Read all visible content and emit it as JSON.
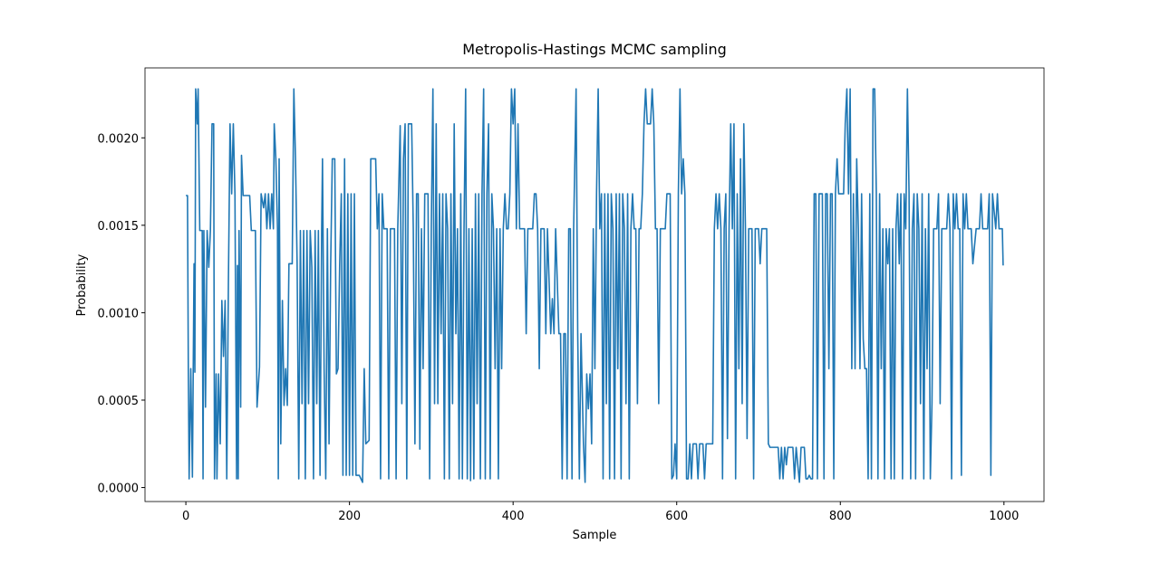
{
  "chart_data": {
    "type": "line",
    "title": "Metropolis-Hastings MCMC sampling",
    "x_label": "Sample",
    "y_label": "Probability",
    "color": "#1f77b4",
    "xlim": [
      -49.95,
      1048.95
    ],
    "ylim": [
      -8e-05,
      0.0024
    ],
    "xticks": [
      0,
      200,
      400,
      600,
      800,
      1000
    ],
    "yticks": [
      {
        "value": 0,
        "label": "0.0000"
      },
      0.0005,
      {
        "value": 0.001,
        "label": "0.0010"
      },
      0.0015,
      {
        "value": 0.002,
        "label": "0.0020"
      }
    ],
    "x": [
      0,
      2,
      3,
      4,
      6,
      8,
      10,
      11,
      12,
      14,
      15,
      17,
      20,
      21,
      22,
      24,
      26,
      28,
      30,
      32,
      34,
      35,
      37,
      38,
      40,
      42,
      44,
      46,
      48,
      50,
      52,
      54,
      56,
      58,
      60,
      62,
      63,
      64,
      65,
      67,
      68,
      70,
      78,
      80,
      85,
      87,
      90,
      92,
      95,
      97,
      99,
      101,
      103,
      105,
      107,
      108,
      110,
      112,
      113,
      114,
      116,
      118,
      120,
      122,
      124,
      126,
      130,
      132,
      134,
      136,
      138,
      140,
      142,
      144,
      146,
      148,
      150,
      152,
      154,
      156,
      158,
      160,
      162,
      164,
      166,
      167,
      169,
      171,
      173,
      175,
      177,
      179,
      182,
      184,
      186,
      188,
      190,
      192,
      194,
      196,
      198,
      200,
      202,
      204,
      206,
      208,
      212,
      216,
      218,
      220,
      224,
      226,
      232,
      234,
      236,
      238,
      240,
      242,
      246,
      248,
      250,
      255,
      257,
      259,
      262,
      264,
      266,
      268,
      270,
      272,
      276,
      278,
      280,
      282,
      284,
      286,
      288,
      290,
      292,
      296,
      298,
      300,
      302,
      304,
      306,
      308,
      310,
      312,
      314,
      316,
      318,
      320,
      322,
      324,
      326,
      328,
      330,
      332,
      334,
      336,
      338,
      340,
      342,
      344,
      346,
      348,
      350,
      352,
      354,
      356,
      358,
      360,
      362,
      364,
      366,
      368,
      370,
      372,
      374,
      376,
      378,
      380,
      382,
      384,
      386,
      388,
      390,
      392,
      394,
      396,
      398,
      400,
      402,
      404,
      406,
      408,
      410,
      414,
      416,
      418,
      424,
      426,
      428,
      430,
      432,
      434,
      438,
      440,
      442,
      446,
      448,
      450,
      452,
      456,
      458,
      460,
      462,
      464,
      466,
      468,
      470,
      472,
      474,
      477,
      479,
      481,
      483,
      486,
      488,
      490,
      492,
      494,
      496,
      498,
      500,
      502,
      504,
      506,
      508,
      510,
      512,
      514,
      516,
      518,
      520,
      522,
      524,
      526,
      528,
      530,
      532,
      534,
      536,
      538,
      540,
      542,
      544,
      546,
      548,
      550,
      552,
      554,
      556,
      558,
      560,
      562,
      564,
      568,
      570,
      572,
      574,
      576,
      578,
      580,
      586,
      588,
      592,
      594,
      596,
      598,
      600,
      602,
      604,
      606,
      608,
      610,
      612,
      614,
      616,
      618,
      620,
      624,
      626,
      628,
      632,
      634,
      636,
      644,
      646,
      648,
      650,
      652,
      654,
      656,
      658,
      660,
      662,
      664,
      666,
      668,
      670,
      672,
      674,
      676,
      678,
      680,
      682,
      684,
      686,
      688,
      692,
      694,
      696,
      700,
      702,
      704,
      710,
      712,
      714,
      724,
      726,
      728,
      730,
      732,
      734,
      736,
      742,
      744,
      746,
      750,
      752,
      756,
      758,
      760,
      762,
      764,
      766,
      768,
      770,
      772,
      774,
      778,
      780,
      782,
      784,
      786,
      788,
      790,
      792,
      794,
      796,
      798,
      800,
      804,
      806,
      808,
      810,
      812,
      814,
      816,
      818,
      820,
      822,
      824,
      826,
      828,
      830,
      832,
      834,
      836,
      838,
      840,
      842,
      844,
      846,
      848,
      850,
      852,
      854,
      856,
      858,
      860,
      862,
      864,
      866,
      868,
      870,
      872,
      874,
      876,
      878,
      880,
      882,
      884,
      886,
      888,
      890,
      892,
      894,
      896,
      898,
      900,
      902,
      904,
      906,
      908,
      910,
      912,
      914,
      918,
      920,
      922,
      924,
      930,
      932,
      934,
      936,
      938,
      940,
      942,
      944,
      946,
      948,
      950,
      952,
      954,
      956,
      960,
      962,
      966,
      970,
      972,
      974,
      980,
      982,
      984,
      986,
      990,
      992,
      994,
      998,
      999
    ],
    "values": [
      0.00167,
      0.00167,
      0.00068,
      5e-05,
      0.00068,
      6e-05,
      0.00128,
      0.00066,
      0.00228,
      0.00208,
      0.00228,
      0.00147,
      0.00147,
      5e-05,
      0.00147,
      0.00046,
      0.00147,
      0.00126,
      0.00147,
      0.00208,
      0.00208,
      5e-05,
      0.00065,
      5e-05,
      0.00065,
      0.00025,
      0.00107,
      0.00075,
      0.00107,
      5e-05,
      0.00117,
      0.00208,
      0.00168,
      0.00208,
      0.00168,
      5e-05,
      0.00127,
      5e-05,
      0.00147,
      0.00046,
      0.0019,
      0.00167,
      0.00167,
      0.00147,
      0.00147,
      0.00046,
      0.00069,
      0.00168,
      0.0016,
      0.00168,
      0.00148,
      0.00168,
      0.00148,
      0.00168,
      0.00148,
      0.00208,
      0.00188,
      0.00148,
      5e-05,
      0.00188,
      0.00025,
      0.00107,
      0.00047,
      0.00068,
      0.00047,
      0.00128,
      0.00128,
      0.00228,
      0.00188,
      0.00128,
      5e-05,
      0.00147,
      0.00048,
      0.00147,
      5e-05,
      0.00147,
      0.00048,
      0.00147,
      0.00126,
      5e-05,
      0.00147,
      0.00048,
      0.00147,
      7e-05,
      0.00147,
      0.00188,
      0.00068,
      5e-05,
      0.00148,
      0.00025,
      0.00127,
      0.00188,
      0.00188,
      0.00065,
      0.00068,
      0.00127,
      0.00168,
      7e-05,
      0.00188,
      7e-05,
      0.00168,
      7e-05,
      0.00168,
      7e-05,
      0.00168,
      7e-05,
      7e-05,
      3e-05,
      0.00068,
      0.00025,
      0.00027,
      0.00188,
      0.00188,
      0.00148,
      0.00168,
      5e-05,
      0.00168,
      0.00148,
      0.00148,
      5e-05,
      0.00148,
      0.00148,
      5e-05,
      0.00148,
      0.00207,
      0.00048,
      0.00188,
      0.00208,
      5e-05,
      0.00208,
      0.00208,
      0.00148,
      0.00025,
      0.00168,
      0.00168,
      0.00022,
      0.00148,
      0.00068,
      0.00168,
      0.00168,
      5e-05,
      0.00148,
      0.00228,
      0.00048,
      0.00208,
      0.00048,
      0.00168,
      0.00088,
      0.00168,
      5e-05,
      0.00168,
      0.00148,
      5e-05,
      0.00168,
      0.00048,
      0.00208,
      0.00088,
      0.00148,
      5e-05,
      0.00168,
      5e-05,
      0.00148,
      0.00228,
      5e-05,
      0.00148,
      4e-05,
      0.00148,
      5e-05,
      0.00168,
      0.00048,
      0.00168,
      5e-05,
      0.00168,
      0.00228,
      5e-05,
      0.00168,
      0.00208,
      5e-05,
      0.00168,
      0.00148,
      0.00068,
      0.00148,
      5e-05,
      0.00148,
      0.00068,
      0.00148,
      0.00168,
      0.00148,
      0.00148,
      0.00168,
      0.00228,
      0.00208,
      0.00228,
      0.00148,
      0.00208,
      0.00148,
      0.00148,
      0.00148,
      0.00088,
      0.00148,
      0.00148,
      0.00168,
      0.00168,
      0.00148,
      0.00068,
      0.00148,
      0.00148,
      0.00088,
      0.00148,
      0.00088,
      0.00108,
      0.00088,
      0.00148,
      0.00088,
      0.00088,
      5e-05,
      0.00088,
      0.00088,
      5e-05,
      0.00148,
      0.00148,
      5e-05,
      0.00148,
      0.00228,
      0.00088,
      5e-05,
      0.00088,
      0.00025,
      3e-05,
      0.00065,
      0.00045,
      0.00065,
      0.00025,
      0.00148,
      0.00068,
      0.00168,
      0.00228,
      0.00148,
      0.00168,
      5e-05,
      0.00168,
      0.00048,
      0.00168,
      5e-05,
      0.00168,
      0.00148,
      5e-05,
      0.00168,
      0.00068,
      0.00168,
      5e-05,
      0.00168,
      0.00148,
      0.00048,
      0.00168,
      5e-05,
      0.00148,
      0.00168,
      0.00148,
      0.00148,
      0.00048,
      0.00148,
      0.00148,
      0.00168,
      0.00208,
      0.00228,
      0.00208,
      0.00208,
      0.00228,
      0.00208,
      0.00148,
      0.00148,
      0.00048,
      0.00148,
      0.00148,
      0.00168,
      0.00168,
      5e-05,
      7e-05,
      0.00025,
      5e-05,
      0.00168,
      0.00228,
      0.00168,
      0.00188,
      0.00168,
      5e-05,
      5e-05,
      0.00025,
      5e-05,
      0.00025,
      0.00025,
      5e-05,
      0.00025,
      0.00025,
      5e-05,
      0.00025,
      0.00025,
      0.00148,
      0.00168,
      0.00148,
      0.00168,
      0.00148,
      5e-05,
      0.00148,
      0.00168,
      0.00028,
      0.00148,
      0.00208,
      0.00148,
      0.00208,
      5e-05,
      0.00168,
      0.00068,
      0.00188,
      0.00048,
      0.00208,
      0.00148,
      0.00028,
      0.00148,
      0.00148,
      5e-05,
      0.00148,
      0.00148,
      0.00128,
      0.00148,
      0.00148,
      0.00025,
      0.00023,
      0.00023,
      5e-05,
      0.00023,
      5e-05,
      0.00023,
      0.00013,
      0.00023,
      0.00023,
      5e-05,
      0.00023,
      3e-05,
      0.00023,
      0.00023,
      5e-05,
      5e-05,
      7e-05,
      5e-05,
      5e-05,
      0.00168,
      0.00168,
      5e-05,
      0.00168,
      0.00168,
      5e-05,
      0.00168,
      0.00168,
      0.00068,
      0.00168,
      0.00168,
      5e-05,
      0.00168,
      0.00188,
      0.00168,
      0.00168,
      0.00168,
      0.00208,
      0.00228,
      0.00168,
      0.00228,
      0.00068,
      0.00168,
      0.00068,
      0.00188,
      0.00148,
      0.00068,
      0.00168,
      0.00085,
      0.00068,
      0.00068,
      5e-05,
      0.00168,
      5e-05,
      0.00228,
      0.00228,
      0.00168,
      5e-05,
      0.00168,
      0.00068,
      0.00148,
      5e-05,
      0.00148,
      0.00128,
      0.00148,
      5e-05,
      0.00148,
      5e-05,
      0.00148,
      0.00168,
      0.00128,
      0.00168,
      5e-05,
      0.00168,
      0.00148,
      0.00228,
      0.00168,
      5e-05,
      0.00148,
      0.00168,
      5e-05,
      0.00168,
      0.00148,
      0.00048,
      0.00168,
      5e-05,
      0.00148,
      0.00068,
      0.00168,
      5e-05,
      0.00048,
      0.00148,
      0.00148,
      0.00168,
      0.00048,
      0.00148,
      0.00148,
      0.00168,
      0.00148,
      5e-05,
      0.00168,
      0.00148,
      0.00168,
      0.00148,
      0.00148,
      7e-05,
      0.00168,
      0.00148,
      0.00168,
      0.00148,
      0.00148,
      0.00128,
      0.00148,
      0.00148,
      0.00168,
      0.00148,
      0.00148,
      0.00168,
      7e-05,
      0.00168,
      0.00148,
      0.00168,
      0.00148,
      0.00148,
      0.00127
    ]
  }
}
